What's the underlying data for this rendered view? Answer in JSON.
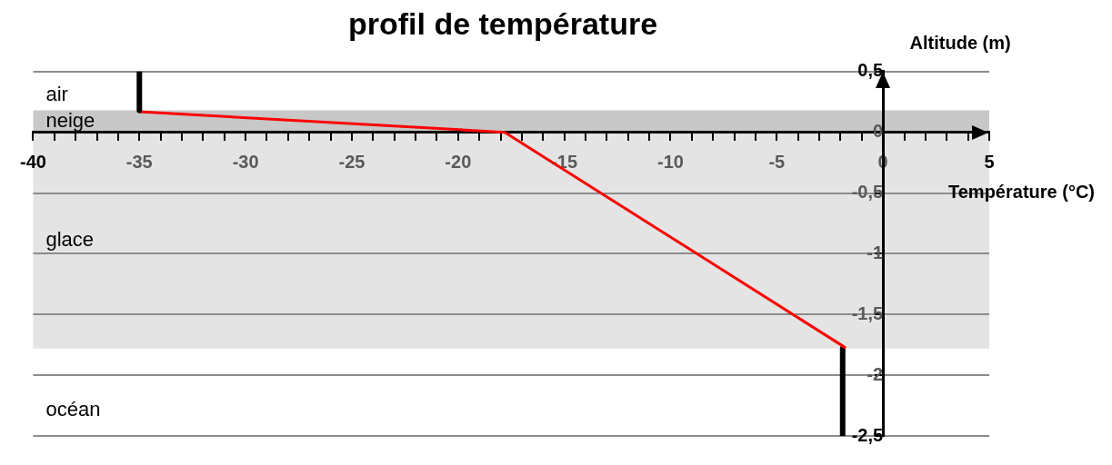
{
  "chart_data": {
    "type": "line",
    "title": "profil de température",
    "xlabel": "Température (°C)",
    "ylabel": "Altitude (m)",
    "xlim": [
      -40,
      5
    ],
    "ylim": [
      -2.5,
      0.5
    ],
    "xticks": [
      -40,
      {
        "value": -39,
        "label": null
      },
      {
        "value": -38,
        "label": null
      },
      {
        "value": -37,
        "label": null
      },
      {
        "value": -36,
        "label": null
      },
      -35,
      {
        "value": -34,
        "label": null
      },
      {
        "value": -33,
        "label": null
      },
      {
        "value": -32,
        "label": null
      },
      {
        "value": -31,
        "label": null
      },
      -30,
      {
        "value": -29,
        "label": null
      },
      {
        "value": -28,
        "label": null
      },
      {
        "value": -27,
        "label": null
      },
      {
        "value": -26,
        "label": null
      },
      -25,
      {
        "value": -24,
        "label": null
      },
      {
        "value": -23,
        "label": null
      },
      {
        "value": -22,
        "label": null
      },
      {
        "value": -21,
        "label": null
      },
      -20,
      {
        "value": -19,
        "label": null
      },
      {
        "value": -18,
        "label": null
      },
      {
        "value": -17,
        "label": null
      },
      {
        "value": -16,
        "label": null
      },
      -15,
      {
        "value": -14,
        "label": null
      },
      {
        "value": -13,
        "label": null
      },
      {
        "value": -12,
        "label": null
      },
      {
        "value": -11,
        "label": null
      },
      -10,
      {
        "value": -9,
        "label": null
      },
      {
        "value": -8,
        "label": null
      },
      {
        "value": -7,
        "label": null
      },
      {
        "value": -6,
        "label": null
      },
      -5,
      {
        "value": -4,
        "label": null
      },
      {
        "value": -3,
        "label": null
      },
      {
        "value": -2,
        "label": null
      },
      {
        "value": -1,
        "label": null
      },
      0,
      {
        "value": 1,
        "label": null
      },
      {
        "value": 2,
        "label": null
      },
      {
        "value": 3,
        "label": null
      },
      {
        "value": 4,
        "label": null
      },
      5
    ],
    "yticks": [
      {
        "value": 0.5,
        "label": "0,5"
      },
      0,
      {
        "value": -0.5,
        "label": "-0,5"
      },
      -1,
      {
        "value": -1.5,
        "label": "-1,5"
      },
      -2,
      {
        "value": -2.5,
        "label": "-2,5"
      }
    ],
    "grid": "y",
    "marker": "none",
    "bands": [
      {
        "axis": "y",
        "from": 0,
        "to": 0.18,
        "label": "neige",
        "color": "#c8c8c8"
      },
      {
        "axis": "y",
        "from": -1.78,
        "to": 0,
        "label": "glace",
        "color": "#e4e4e4"
      }
    ],
    "annotations": [
      "air",
      "océan"
    ],
    "series": [
      {
        "color": "#000000",
        "x": [
          -35,
          -35
        ],
        "values": [
          0.18,
          0.5
        ]
      },
      {
        "color": "#ff0000",
        "x": [
          -35,
          -17.8,
          -1.8
        ],
        "values": [
          0.17,
          0,
          -1.77
        ]
      },
      {
        "color": "#000000",
        "x": [
          -1.9,
          -1.9
        ],
        "values": [
          -1.78,
          -2.5
        ]
      }
    ]
  }
}
